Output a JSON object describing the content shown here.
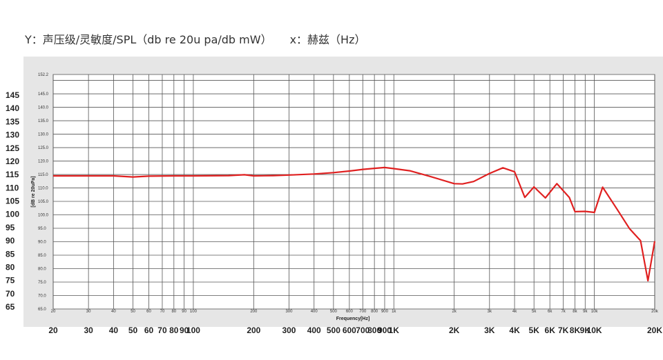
{
  "caption": {
    "y_label": "Y：声压级/灵敏度/SPL（db re 20u pa/db mW）",
    "x_label": "x：赫兹（Hz）"
  },
  "chart_data": {
    "type": "line",
    "xlabel": "Frequency[Hz]",
    "ylabel": "[dB re 20uPa]",
    "x_scale": "log",
    "xlim": [
      20,
      20000
    ],
    "ylim": [
      65,
      152.2
    ],
    "grid": true,
    "line_color": "#e02020",
    "inner_y_ticks": [
      "152.2",
      "145.0",
      "140.0",
      "135.0",
      "130.0",
      "125.0",
      "120.0",
      "115.0",
      "110.0",
      "105.0",
      "100.0",
      "95.0",
      "90.0",
      "85.0",
      "80.0",
      "75.0",
      "70.0",
      "65.0"
    ],
    "inner_x_ticks": [
      "20",
      "30",
      "40",
      "50",
      "60",
      "70",
      "80",
      "90",
      "100",
      "200",
      "300",
      "400",
      "500",
      "600",
      "700",
      "800",
      "900",
      "1k",
      "2k",
      "3k",
      "4k",
      "5k",
      "6k",
      "7k",
      "8k",
      "9k",
      "10k",
      "20k"
    ],
    "outer_y_ticks": [
      "145",
      "140",
      "135",
      "130",
      "125",
      "120",
      "115",
      "110",
      "105",
      "100",
      "95",
      "90",
      "85",
      "80",
      "75",
      "70",
      "65"
    ],
    "outer_x_ticks": [
      "20",
      "30",
      "40",
      "50",
      "60",
      "70",
      "80",
      "90",
      "100",
      "200",
      "300",
      "400",
      "500",
      "600",
      "700",
      "800",
      "900",
      "1K",
      "2K",
      "3K",
      "4K",
      "5K",
      "6K",
      "7K",
      "8K",
      "9K",
      "10K",
      "20K"
    ],
    "series": [
      {
        "points": [
          [
            20,
            114.5
          ],
          [
            30,
            114.5
          ],
          [
            40,
            114.5
          ],
          [
            50,
            114.1
          ],
          [
            60,
            114.4
          ],
          [
            80,
            114.5
          ],
          [
            100,
            114.5
          ],
          [
            150,
            114.6
          ],
          [
            180,
            114.9
          ],
          [
            200,
            114.5
          ],
          [
            250,
            114.6
          ],
          [
            300,
            114.8
          ],
          [
            400,
            115.2
          ],
          [
            500,
            115.7
          ],
          [
            600,
            116.3
          ],
          [
            700,
            116.9
          ],
          [
            800,
            117.3
          ],
          [
            900,
            117.6
          ],
          [
            1000,
            117.2
          ],
          [
            1200,
            116.4
          ],
          [
            1500,
            114.4
          ],
          [
            2000,
            111.6
          ],
          [
            2200,
            111.5
          ],
          [
            2500,
            112.4
          ],
          [
            3000,
            115.4
          ],
          [
            3500,
            117.5
          ],
          [
            4000,
            116.0
          ],
          [
            4500,
            106.5
          ],
          [
            5000,
            110.4
          ],
          [
            5700,
            106.3
          ],
          [
            6500,
            111.6
          ],
          [
            7500,
            106.5
          ],
          [
            8000,
            101.2
          ],
          [
            9000,
            101.3
          ],
          [
            10000,
            100.9
          ],
          [
            11000,
            110.3
          ],
          [
            13000,
            102.0
          ],
          [
            15000,
            94.8
          ],
          [
            17000,
            90.4
          ],
          [
            18500,
            75.5
          ],
          [
            20000,
            90.2
          ]
        ]
      }
    ]
  }
}
